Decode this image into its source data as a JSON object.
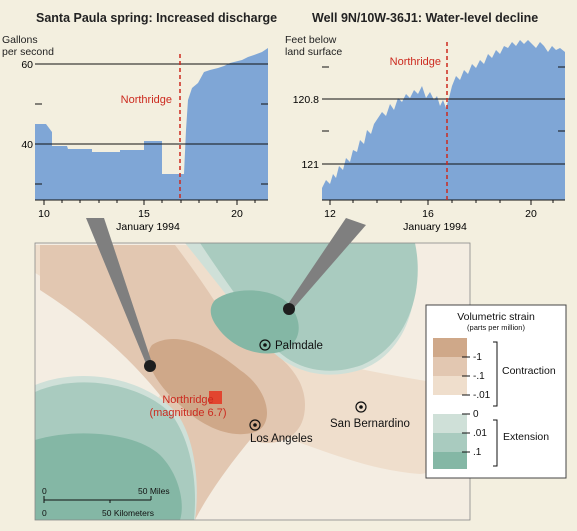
{
  "left_chart": {
    "title": "Santa Paula spring:  Increased discharge",
    "y_unit_line1": "Gallons",
    "y_unit_line2": "per second",
    "y_ticks": [
      "60",
      "40"
    ],
    "x_ticks": [
      "10",
      "15",
      "20"
    ],
    "x_label": "January 1994",
    "event_label": "Northridge",
    "fill_color": "#7fa6d6",
    "event_color": "#cc2a1f"
  },
  "right_chart": {
    "title": "Well 9N/10W-36J1:  Water-level decline",
    "y_unit_line1": "Feet below",
    "y_unit_line2": "land surface",
    "y_ticks": [
      "120.8",
      "121"
    ],
    "x_ticks": [
      "12",
      "16",
      "20"
    ],
    "x_label": "January 1994",
    "event_label": "Northridge",
    "fill_color": "#7fa6d6",
    "event_color": "#cc2a1f"
  },
  "map": {
    "epicenter_label_line1": "Northridge",
    "epicenter_label_line2": "(magnitude 6.7)",
    "cities": [
      "Palmdale",
      "Los Angeles",
      "San Bernardino"
    ],
    "scale_miles_zero": "0",
    "scale_miles_label": "50 Miles",
    "scale_km_zero": "0",
    "scale_km_label": "50 Kilometers",
    "epicenter_color": "#e2452f"
  },
  "legend": {
    "title": "Volumetric strain",
    "subtitle": "(parts per million)",
    "values": [
      "-1",
      "-.1",
      "-.01",
      "0",
      ".01",
      ".1"
    ],
    "contraction_label": "Contraction",
    "extension_label": "Extension",
    "contraction_colors": [
      "#cfa889",
      "#e2c7b1",
      "#efdecc"
    ],
    "extension_colors": [
      "#cfe0d8",
      "#a9cbbf",
      "#84b7a5"
    ]
  }
}
